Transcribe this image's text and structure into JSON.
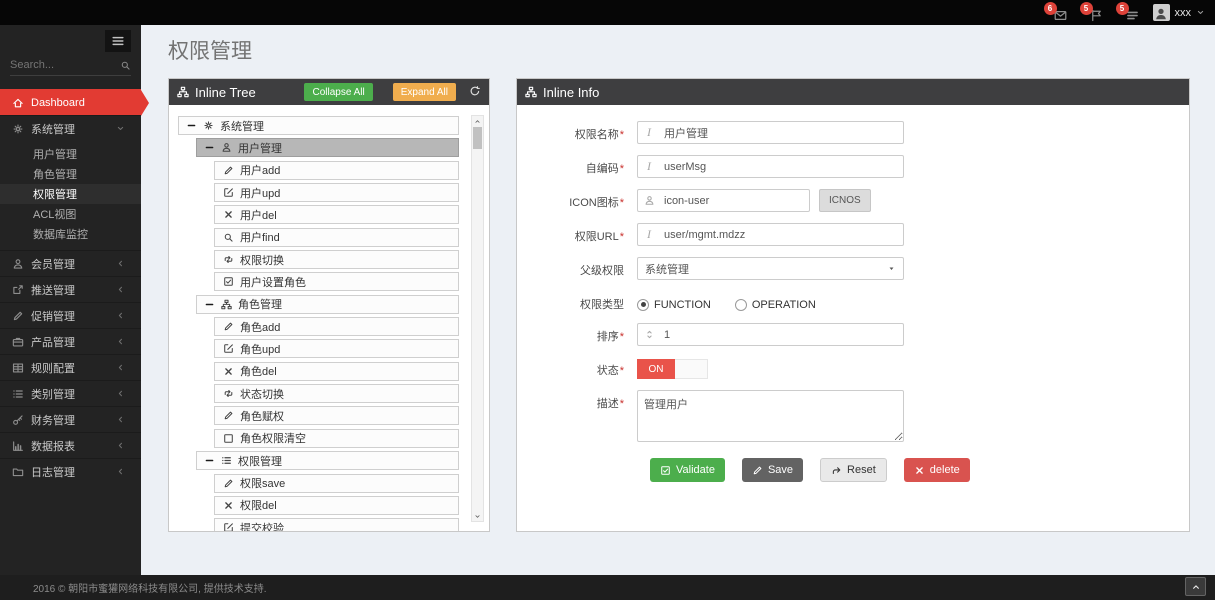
{
  "topbar": {
    "badges": [
      {
        "icon": "envelope",
        "count": "6"
      },
      {
        "icon": "flag",
        "count": "5"
      },
      {
        "icon": "tasks",
        "count": "5"
      }
    ],
    "username": "xxx"
  },
  "sidebar": {
    "search_placeholder": "Search...",
    "items": [
      {
        "label": "Dashboard",
        "icon": "home",
        "active": true,
        "chevron": false
      },
      {
        "label": "系统管理",
        "icon": "cogs",
        "expanded": true,
        "children": [
          "用户管理",
          "角色管理",
          "权限管理",
          "ACL视图",
          "数据库监控"
        ],
        "active_child": "权限管理"
      },
      {
        "label": "会员管理",
        "icon": "user"
      },
      {
        "label": "推送管理",
        "icon": "share"
      },
      {
        "label": "促销管理",
        "icon": "pencil"
      },
      {
        "label": "产品管理",
        "icon": "briefcase"
      },
      {
        "label": "规则配置",
        "icon": "table"
      },
      {
        "label": "类别管理",
        "icon": "list"
      },
      {
        "label": "财务管理",
        "icon": "key"
      },
      {
        "label": "数据报表",
        "icon": "chart"
      },
      {
        "label": "日志管理",
        "icon": "folder"
      }
    ]
  },
  "page": {
    "title": "权限管理"
  },
  "tree_panel": {
    "title": "Inline Tree",
    "collapse_all": "Collapse All",
    "expand_all": "Expand All",
    "nodes": [
      {
        "label": "系统管理",
        "icon": "cogs",
        "level": 0,
        "toggle": true
      },
      {
        "label": "用户管理",
        "icon": "user",
        "level": 1,
        "toggle": true,
        "selected": true
      },
      {
        "label": "用户add",
        "icon": "pencil",
        "level": 2
      },
      {
        "label": "用户upd",
        "icon": "edit",
        "level": 2
      },
      {
        "label": "用户del",
        "icon": "x",
        "level": 2
      },
      {
        "label": "用户find",
        "icon": "search",
        "level": 2
      },
      {
        "label": "权限切换",
        "icon": "retweet",
        "level": 2
      },
      {
        "label": "用户设置角色",
        "icon": "check-square",
        "level": 2
      },
      {
        "label": "角色管理",
        "icon": "sitemap",
        "level": 1,
        "toggle": true
      },
      {
        "label": "角色add",
        "icon": "pencil",
        "level": 2
      },
      {
        "label": "角色upd",
        "icon": "edit",
        "level": 2
      },
      {
        "label": "角色del",
        "icon": "x",
        "level": 2
      },
      {
        "label": "状态切换",
        "icon": "retweet",
        "level": 2
      },
      {
        "label": "角色赋权",
        "icon": "pencil",
        "level": 2
      },
      {
        "label": "角色权限清空",
        "icon": "square",
        "level": 2
      },
      {
        "label": "权限管理",
        "icon": "list",
        "level": 1,
        "toggle": true
      },
      {
        "label": "权限save",
        "icon": "pencil",
        "level": 2
      },
      {
        "label": "权限del",
        "icon": "x",
        "level": 2
      },
      {
        "label": "提交校验",
        "icon": "edit",
        "level": 2
      }
    ]
  },
  "info_panel": {
    "title": "Inline Info",
    "required_marker": "*",
    "fields": {
      "name": {
        "label": "权限名称",
        "value": "用户管理"
      },
      "code": {
        "label": "自编码",
        "value": "userMsg"
      },
      "icon": {
        "label": "ICON图标",
        "value": "icon-user",
        "button": "ICNOS"
      },
      "url": {
        "label": "权限URL",
        "value": "user/mgmt.mdzz"
      },
      "parent": {
        "label": "父级权限",
        "value": "系统管理"
      },
      "type": {
        "label": "权限类型",
        "options": [
          "FUNCTION",
          "OPERATION"
        ],
        "selected": "FUNCTION"
      },
      "sort": {
        "label": "排序",
        "value": "1"
      },
      "status": {
        "label": "状态",
        "value": "ON"
      },
      "desc": {
        "label": "描述",
        "value": "管理用户"
      }
    },
    "buttons": {
      "validate": "Validate",
      "save": "Save",
      "reset": "Reset",
      "delete": "delete"
    }
  },
  "footer": {
    "copyright": "2016 © 朝阳市蜜獾网络科技有限公司, 提供技术支持."
  }
}
